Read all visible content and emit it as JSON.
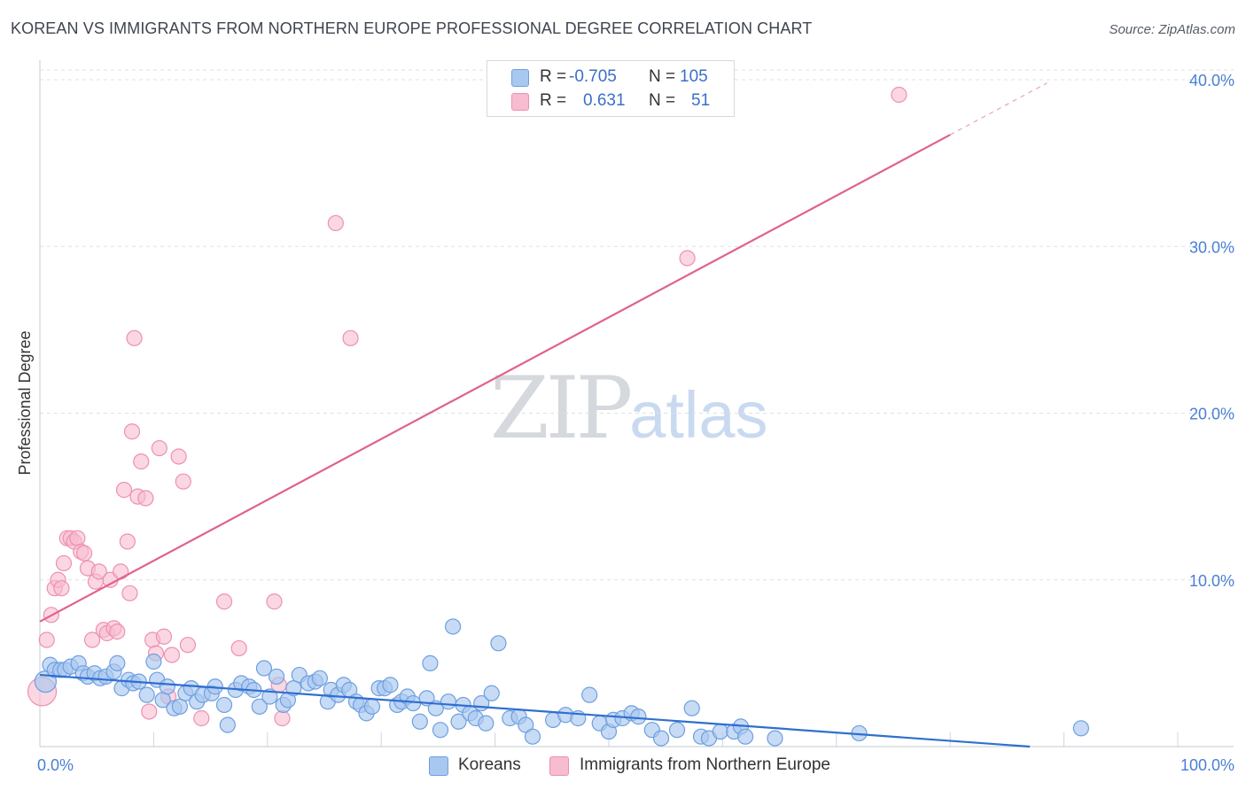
{
  "header": {
    "title": "KOREAN VS IMMIGRANTS FROM NORTHERN EUROPE PROFESSIONAL DEGREE CORRELATION CHART",
    "source": "Source: ZipAtlas.com"
  },
  "legend": {
    "rows": [
      {
        "r_label": "R =",
        "r_value": "-0.705",
        "n_label": "N =",
        "n_value": "105"
      },
      {
        "r_label": "R =",
        "r_value": "0.631",
        "n_label": "N =",
        "n_value": "51"
      }
    ]
  },
  "bottom_legend": [
    "Koreans",
    "Immigrants from Northern Europe"
  ],
  "watermark": {
    "zip": "ZIP",
    "atlas": "atlas"
  },
  "colors": {
    "blue_fill": "#a9c8f0",
    "blue_stroke": "#6e9fe0",
    "blue_line": "#2f6fcf",
    "pink_fill": "#f7bcd0",
    "pink_stroke": "#ee90b0",
    "pink_line": "#e0628c",
    "axis_text": "#4a7fd4",
    "grid": "#dde1e6"
  },
  "chart_data": {
    "type": "scatter",
    "title": "KOREAN VS IMMIGRANTS FROM NORTHERN EUROPE PROFESSIONAL DEGREE CORRELATION CHART",
    "xlabel": "",
    "ylabel": "Professional Degree",
    "xlim": [
      0,
      100
    ],
    "ylim": [
      0,
      40.8
    ],
    "x_tick_labels": [
      {
        "value": 0,
        "label": "0.0%"
      },
      {
        "value": 100,
        "label": "100.0%"
      }
    ],
    "y_tick_labels": [
      {
        "value": 10,
        "label": "10.0%"
      },
      {
        "value": 20,
        "label": "20.0%"
      },
      {
        "value": 30,
        "label": "30.0%"
      },
      {
        "value": 40,
        "label": "40.0%"
      }
    ],
    "series": [
      {
        "name": "Koreans",
        "color": "blue",
        "trend": {
          "x": [
            0,
            87
          ],
          "y": [
            4.3,
            0.0
          ]
        },
        "points": [
          [
            0.5,
            3.9
          ],
          [
            0.9,
            4.9
          ],
          [
            1.3,
            4.6
          ],
          [
            1.8,
            4.6
          ],
          [
            2.2,
            4.6
          ],
          [
            2.7,
            4.8
          ],
          [
            3.4,
            5.0
          ],
          [
            3.8,
            4.4
          ],
          [
            4.2,
            4.2
          ],
          [
            4.8,
            4.4
          ],
          [
            5.3,
            4.1
          ],
          [
            5.8,
            4.2
          ],
          [
            6.5,
            4.5
          ],
          [
            6.8,
            5.0
          ],
          [
            7.2,
            3.5
          ],
          [
            7.8,
            4.0
          ],
          [
            8.2,
            3.8
          ],
          [
            8.7,
            3.9
          ],
          [
            9.4,
            3.1
          ],
          [
            10.0,
            5.1
          ],
          [
            10.3,
            4.0
          ],
          [
            10.8,
            2.8
          ],
          [
            11.2,
            3.6
          ],
          [
            11.8,
            2.3
          ],
          [
            12.3,
            2.4
          ],
          [
            12.8,
            3.2
          ],
          [
            13.3,
            3.5
          ],
          [
            13.8,
            2.7
          ],
          [
            14.3,
            3.1
          ],
          [
            15.1,
            3.2
          ],
          [
            15.4,
            3.6
          ],
          [
            16.2,
            2.5
          ],
          [
            16.5,
            1.3
          ],
          [
            17.2,
            3.4
          ],
          [
            17.7,
            3.8
          ],
          [
            18.4,
            3.6
          ],
          [
            18.8,
            3.4
          ],
          [
            19.3,
            2.4
          ],
          [
            19.7,
            4.7
          ],
          [
            20.2,
            3.0
          ],
          [
            20.8,
            4.2
          ],
          [
            21.4,
            2.5
          ],
          [
            21.8,
            2.8
          ],
          [
            22.3,
            3.5
          ],
          [
            22.8,
            4.3
          ],
          [
            23.6,
            3.8
          ],
          [
            24.2,
            3.9
          ],
          [
            24.6,
            4.1
          ],
          [
            25.3,
            2.7
          ],
          [
            25.6,
            3.4
          ],
          [
            26.2,
            3.1
          ],
          [
            26.7,
            3.7
          ],
          [
            27.2,
            3.4
          ],
          [
            27.8,
            2.7
          ],
          [
            28.2,
            2.5
          ],
          [
            28.7,
            2.0
          ],
          [
            29.2,
            2.4
          ],
          [
            29.8,
            3.5
          ],
          [
            30.3,
            3.5
          ],
          [
            30.8,
            3.7
          ],
          [
            31.4,
            2.5
          ],
          [
            31.8,
            2.7
          ],
          [
            32.3,
            3.0
          ],
          [
            32.8,
            2.6
          ],
          [
            33.4,
            1.5
          ],
          [
            34.0,
            2.9
          ],
          [
            34.3,
            5.0
          ],
          [
            34.8,
            2.3
          ],
          [
            35.2,
            1.0
          ],
          [
            35.9,
            2.7
          ],
          [
            36.3,
            7.2
          ],
          [
            36.8,
            1.5
          ],
          [
            37.2,
            2.5
          ],
          [
            37.8,
            2.0
          ],
          [
            38.3,
            1.7
          ],
          [
            38.8,
            2.6
          ],
          [
            39.2,
            1.4
          ],
          [
            39.7,
            3.2
          ],
          [
            40.3,
            6.2
          ],
          [
            41.3,
            1.7
          ],
          [
            42.1,
            1.8
          ],
          [
            42.7,
            1.3
          ],
          [
            43.3,
            0.6
          ],
          [
            45.1,
            1.6
          ],
          [
            46.2,
            1.9
          ],
          [
            47.3,
            1.7
          ],
          [
            48.3,
            3.1
          ],
          [
            49.2,
            1.4
          ],
          [
            50.0,
            0.9
          ],
          [
            50.4,
            1.6
          ],
          [
            51.2,
            1.7
          ],
          [
            52.0,
            2.0
          ],
          [
            52.6,
            1.8
          ],
          [
            53.8,
            1.0
          ],
          [
            54.6,
            0.5
          ],
          [
            56.0,
            1.0
          ],
          [
            57.3,
            2.3
          ],
          [
            58.1,
            0.6
          ],
          [
            58.8,
            0.5
          ],
          [
            59.8,
            0.9
          ],
          [
            61.0,
            0.9
          ],
          [
            61.6,
            1.2
          ],
          [
            62.0,
            0.6
          ],
          [
            64.6,
            0.5
          ],
          [
            72.0,
            0.8
          ],
          [
            91.5,
            1.1
          ]
        ]
      },
      {
        "name": "Immigrants from Northern Europe",
        "color": "pink",
        "trend": {
          "x": [
            0,
            80
          ],
          "y": [
            7.5,
            36.7
          ]
        },
        "trend_dashed": {
          "x": [
            80,
            88.5
          ],
          "y": [
            36.7,
            39.8
          ]
        },
        "points": [
          [
            0.2,
            3.3
          ],
          [
            0.6,
            6.4
          ],
          [
            1.0,
            7.9
          ],
          [
            1.3,
            9.5
          ],
          [
            1.6,
            10.0
          ],
          [
            1.9,
            9.5
          ],
          [
            2.1,
            11.0
          ],
          [
            2.4,
            12.5
          ],
          [
            2.7,
            12.5
          ],
          [
            3.0,
            12.3
          ],
          [
            3.3,
            12.5
          ],
          [
            3.6,
            11.7
          ],
          [
            3.9,
            11.6
          ],
          [
            4.2,
            10.7
          ],
          [
            4.6,
            6.4
          ],
          [
            4.9,
            9.9
          ],
          [
            5.2,
            10.5
          ],
          [
            5.6,
            7.0
          ],
          [
            5.9,
            6.8
          ],
          [
            6.2,
            10.0
          ],
          [
            6.5,
            7.1
          ],
          [
            6.8,
            6.9
          ],
          [
            7.1,
            10.5
          ],
          [
            7.4,
            15.4
          ],
          [
            7.7,
            12.3
          ],
          [
            7.9,
            9.2
          ],
          [
            8.1,
            18.9
          ],
          [
            8.3,
            24.5
          ],
          [
            8.6,
            15.0
          ],
          [
            8.9,
            17.1
          ],
          [
            9.3,
            14.9
          ],
          [
            9.6,
            2.1
          ],
          [
            9.9,
            6.4
          ],
          [
            10.2,
            5.6
          ],
          [
            10.5,
            17.9
          ],
          [
            10.9,
            6.6
          ],
          [
            11.3,
            3.0
          ],
          [
            11.6,
            5.5
          ],
          [
            12.2,
            17.4
          ],
          [
            12.6,
            15.9
          ],
          [
            13.0,
            6.1
          ],
          [
            14.2,
            1.7
          ],
          [
            16.2,
            8.7
          ],
          [
            17.5,
            5.9
          ],
          [
            20.6,
            8.7
          ],
          [
            21.0,
            3.7
          ],
          [
            21.3,
            1.7
          ],
          [
            26.0,
            31.4
          ],
          [
            27.3,
            24.5
          ],
          [
            56.9,
            29.3
          ],
          [
            75.5,
            39.1
          ]
        ]
      }
    ]
  }
}
